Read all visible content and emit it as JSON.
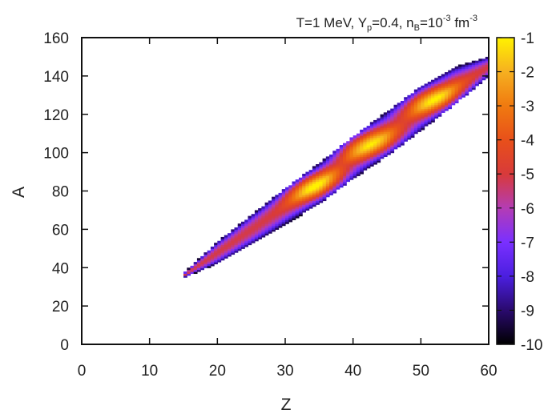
{
  "chart_data": {
    "type": "heatmap",
    "title_parts": {
      "a": "T=1 MeV, Y",
      "b": "p",
      "c": "=0.4, n",
      "d": "B",
      "e": "=10",
      "f": "-3",
      "g": " fm",
      "h": "-3"
    },
    "xlabel": "Z",
    "ylabel": "A",
    "xlim": [
      0,
      60
    ],
    "ylim": [
      0,
      160
    ],
    "xticks": [
      0,
      10,
      20,
      30,
      40,
      50,
      60
    ],
    "yticks": [
      0,
      20,
      40,
      60,
      80,
      100,
      120,
      140,
      160
    ],
    "colorbar": {
      "range": [
        -10,
        -1
      ],
      "ticks": [
        -1,
        -2,
        -3,
        -4,
        -5,
        -6,
        -7,
        -8,
        -9,
        -10
      ],
      "colors": [
        "#000000",
        "#2a0a6e",
        "#4b1fe0",
        "#7a30ff",
        "#b43cb4",
        "#d83a3a",
        "#e8501a",
        "#f07a10",
        "#f6b020",
        "#fff200"
      ]
    },
    "distribution": {
      "z_range": [
        15,
        60
      ],
      "peaks": [
        {
          "Z": 34,
          "A": 83,
          "value": -1.5
        },
        {
          "Z": 42,
          "A": 105,
          "value": -1.8
        },
        {
          "Z": 52,
          "A": 128,
          "value": -1.7
        }
      ],
      "ridge": [
        {
          "Z": 15,
          "A": 36,
          "a_min": 35,
          "a_max": 37
        },
        {
          "Z": 20,
          "A": 48,
          "a_min": 42,
          "a_max": 53
        },
        {
          "Z": 25,
          "A": 60,
          "a_min": 52,
          "a_max": 67
        },
        {
          "Z": 30,
          "A": 72,
          "a_min": 63,
          "a_max": 81
        },
        {
          "Z": 35,
          "A": 84,
          "a_min": 74,
          "a_max": 94
        },
        {
          "Z": 40,
          "A": 98,
          "a_min": 86,
          "a_max": 108
        },
        {
          "Z": 45,
          "A": 110,
          "a_min": 99,
          "a_max": 121
        },
        {
          "Z": 50,
          "A": 123,
          "a_min": 112,
          "a_max": 134
        },
        {
          "Z": 55,
          "A": 135,
          "a_min": 126,
          "a_max": 145
        },
        {
          "Z": 60,
          "A": 145,
          "a_min": 140,
          "a_max": 150
        }
      ]
    }
  }
}
